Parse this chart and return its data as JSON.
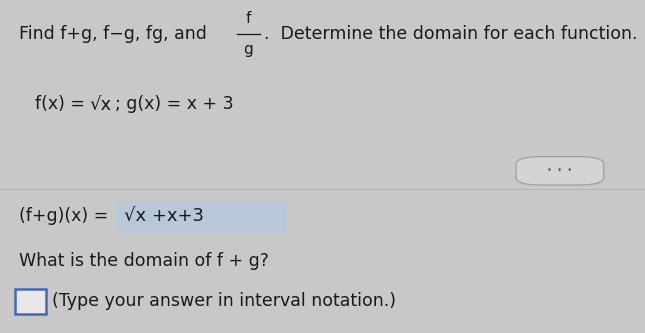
{
  "top_bg_color": "#c8c8c8",
  "bottom_bg_color": "#e8e8e8",
  "divider_color": "#b0b0b0",
  "text_color": "#1a1a1a",
  "highlight_color": "#b8c8d8",
  "dots_bg": "#d8d8d8",
  "checkbox_color": "#4466bb",
  "font_size_main": 12.5,
  "line1_prefix": "Find f+g, f−g, fg, and",
  "frac_num": "f",
  "frac_den": "g",
  "line1_suffix": ".  Determine the domain for each function.",
  "line2a": "f(x) = ",
  "line2sqrt": "√x",
  "line2b": "; g(x) = x + 3",
  "result_prefix": "(f+g)(x) = ",
  "result_sqrt": "√x +x+3",
  "domain_q": "What is the domain of f + g?",
  "answer_hint": "(Type your answer in interval notation.)"
}
